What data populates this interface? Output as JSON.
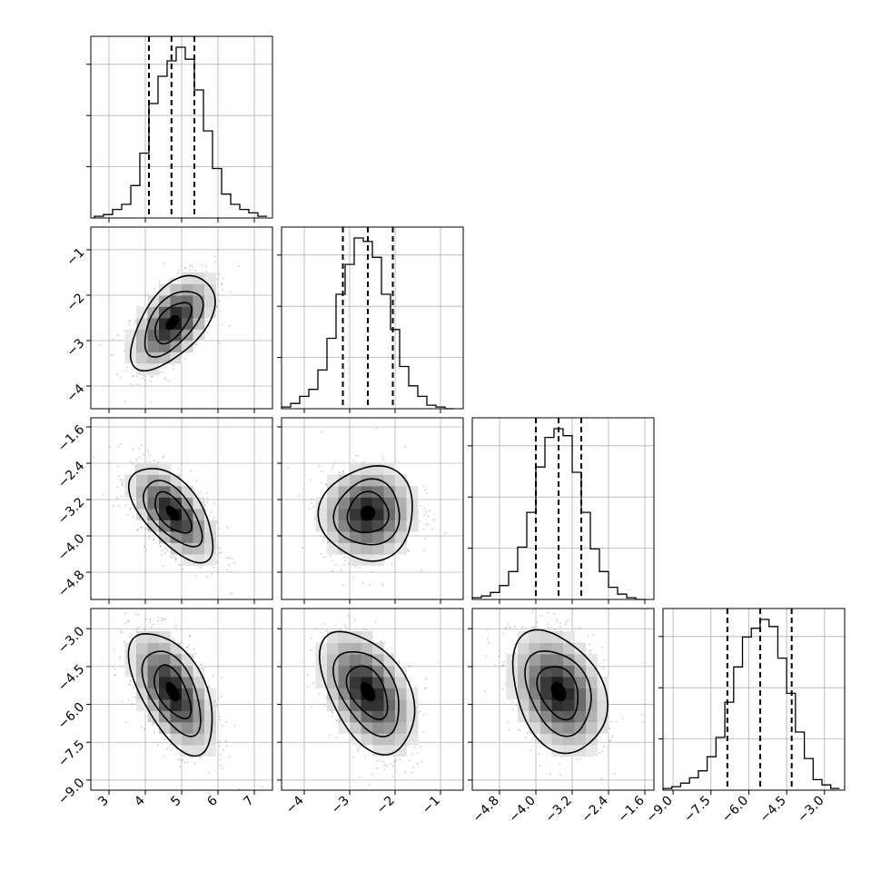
{
  "chart_data": {
    "type": "corner",
    "grid": true,
    "parameters": [
      {
        "range": [
          2.5,
          7.5
        ],
        "ticks": [
          3,
          4,
          5,
          6,
          7
        ],
        "tick_labels": [
          "3",
          "4",
          "5",
          "6",
          "7"
        ],
        "quantiles": [
          4.1,
          4.72,
          5.35
        ],
        "hist_bins": [
          2.6,
          2.85,
          3.1,
          3.35,
          3.6,
          3.85,
          4.1,
          4.35,
          4.6,
          4.85,
          5.1,
          5.35,
          5.6,
          5.85,
          6.1,
          6.35,
          6.6,
          6.85,
          7.1,
          7.35
        ],
        "hist_heights": [
          0.01,
          0.02,
          0.05,
          0.08,
          0.19,
          0.38,
          0.67,
          0.83,
          0.92,
          1.0,
          0.93,
          0.75,
          0.51,
          0.29,
          0.14,
          0.08,
          0.05,
          0.03,
          0.01
        ]
      },
      {
        "range": [
          -4.5,
          -0.5
        ],
        "ticks": [
          -4,
          -3,
          -2,
          -1
        ],
        "tick_labels": [
          "−4",
          "−3",
          "−2",
          "−1"
        ],
        "quantiles": [
          -3.15,
          -2.6,
          -2.05
        ],
        "hist_bins": [
          -4.5,
          -4.3,
          -4.1,
          -3.9,
          -3.7,
          -3.5,
          -3.3,
          -3.1,
          -2.9,
          -2.7,
          -2.5,
          -2.3,
          -2.1,
          -1.9,
          -1.7,
          -1.5,
          -1.3,
          -1.1,
          -0.9,
          -0.7
        ],
        "hist_heights": [
          0.01,
          0.03,
          0.07,
          0.11,
          0.22,
          0.4,
          0.65,
          0.82,
          0.97,
          0.95,
          0.86,
          0.65,
          0.45,
          0.24,
          0.13,
          0.07,
          0.02,
          0.01,
          0.0
        ]
      },
      {
        "range": [
          -5.4,
          -1.4
        ],
        "ticks": [
          -4.8,
          -4.0,
          -3.2,
          -2.4,
          -1.6
        ],
        "tick_labels": [
          "−4.8",
          "−4.0",
          "−3.2",
          "−2.4",
          "−1.6"
        ],
        "quantiles": [
          -4.0,
          -3.5,
          -3.0
        ],
        "hist_bins": [
          -5.4,
          -5.2,
          -5.0,
          -4.8,
          -4.6,
          -4.4,
          -4.2,
          -4.0,
          -3.8,
          -3.6,
          -3.4,
          -3.2,
          -3.0,
          -2.8,
          -2.6,
          -2.4,
          -2.2,
          -2.0,
          -1.8,
          -1.6
        ],
        "hist_heights": [
          0.01,
          0.02,
          0.04,
          0.08,
          0.16,
          0.3,
          0.5,
          0.76,
          0.93,
          0.98,
          0.94,
          0.73,
          0.5,
          0.29,
          0.16,
          0.07,
          0.03,
          0.01,
          0.0
        ]
      },
      {
        "range": [
          -9.4,
          -2.2
        ],
        "ticks": [
          -9.0,
          -7.5,
          -6.0,
          -4.5,
          -3.0
        ],
        "tick_labels": [
          "−9.0",
          "−7.5",
          "−6.0",
          "−4.5",
          "−3.0"
        ],
        "quantiles": [
          -6.85,
          -5.55,
          -4.3
        ],
        "hist_bins": [
          -9.4,
          -9.05,
          -8.7,
          -8.35,
          -8.0,
          -7.65,
          -7.3,
          -6.95,
          -6.6,
          -6.25,
          -5.9,
          -5.55,
          -5.2,
          -4.85,
          -4.5,
          -4.15,
          -3.8,
          -3.45,
          -3.1,
          -2.75,
          -2.4
        ],
        "hist_heights": [
          0.01,
          0.02,
          0.04,
          0.07,
          0.11,
          0.19,
          0.3,
          0.5,
          0.7,
          0.87,
          0.92,
          0.97,
          0.93,
          0.75,
          0.55,
          0.33,
          0.18,
          0.06,
          0.03,
          0.01
        ]
      }
    ],
    "correlations": [
      [
        1.0,
        0.55,
        -0.6,
        -0.55
      ],
      [
        0.55,
        1.0,
        0.05,
        -0.45
      ],
      [
        -0.6,
        0.05,
        1.0,
        -0.3
      ],
      [
        -0.55,
        -0.45,
        -0.3,
        1.0
      ]
    ],
    "means": [
      4.75,
      -2.6,
      -3.5,
      -5.5
    ],
    "sds": [
      0.5,
      0.45,
      0.45,
      1.05
    ]
  }
}
